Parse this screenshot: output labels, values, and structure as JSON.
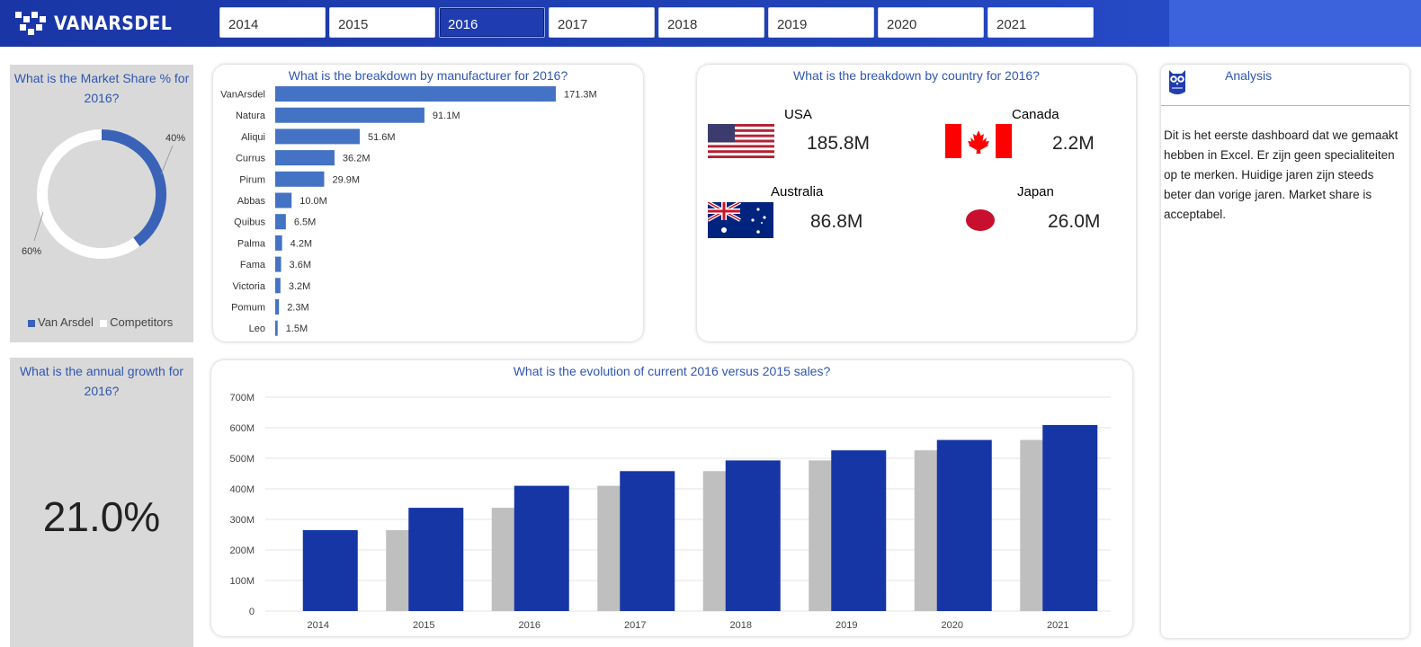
{
  "brand": {
    "name": "VANARSDEL"
  },
  "year_tabs": [
    {
      "label": "2014",
      "active": false
    },
    {
      "label": "2015",
      "active": false
    },
    {
      "label": "2016",
      "active": true
    },
    {
      "label": "2017",
      "active": false
    },
    {
      "label": "2018",
      "active": false
    },
    {
      "label": "2019",
      "active": false
    },
    {
      "label": "2020",
      "active": false
    },
    {
      "label": "2021",
      "active": false
    }
  ],
  "market_share": {
    "title": "What is the Market Share % for 2016?",
    "label_vanarsdel": "40%",
    "label_competitors": "60%",
    "legend_vanarsdel": "Van Arsdel",
    "legend_competitors": "Competitors",
    "colors": {
      "vanarsdel": "#3a63b8",
      "competitors": "#ffffff"
    }
  },
  "annual_growth": {
    "title": "What is the annual growth for 2016?",
    "value": "21.0%"
  },
  "manufacturer": {
    "title": "What is the breakdown by manufacturer for 2016?"
  },
  "country": {
    "title": "What is the breakdown by country for 2016?",
    "items": [
      {
        "name": "USA",
        "value": "185.8M",
        "flag": "us-flag"
      },
      {
        "name": "Canada",
        "value": "2.2M",
        "flag": "canada-flag"
      },
      {
        "name": "Australia",
        "value": "86.8M",
        "flag": "australia-flag"
      },
      {
        "name": "Japan",
        "value": "26.0M",
        "flag": "japan-flag"
      }
    ]
  },
  "evolution": {
    "title": "What is the evolution of current 2016 versus 2015 sales?"
  },
  "analysis": {
    "title": "Analysis",
    "icon": "owl-icon",
    "text": "Dit is het eerste dashboard dat we gemaakt hebben in Excel. Er zijn geen specialiteiten op te merken. Huidige jaren zijn steeds beter dan vorige jaren. Market share is acceptabel."
  },
  "chart_data": [
    {
      "type": "pie",
      "title": "What is the Market Share % for 2016?",
      "categories": [
        "Van Arsdel",
        "Competitors"
      ],
      "values": [
        40,
        60
      ],
      "legend": "bottom"
    },
    {
      "type": "bar",
      "orientation": "horizontal",
      "title": "What is the breakdown by manufacturer for 2016?",
      "categories": [
        "VanArsdel",
        "Natura",
        "Aliqui",
        "Currus",
        "Pirum",
        "Abbas",
        "Quibus",
        "Palma",
        "Fama",
        "Victoria",
        "Pomum",
        "Leo"
      ],
      "values": [
        171.3,
        91.1,
        51.6,
        36.2,
        29.9,
        10.0,
        6.5,
        4.2,
        3.6,
        3.2,
        2.3,
        1.5
      ],
      "value_labels": [
        "171.3M",
        "91.1M",
        "51.6M",
        "36.2M",
        "29.9M",
        "10.0M",
        "6.5M",
        "4.2M",
        "3.6M",
        "3.2M",
        "2.3M",
        "1.5M"
      ],
      "unit": "M",
      "color": "#4472c4"
    },
    {
      "type": "bar",
      "title": "What is the evolution of current 2016 versus 2015 sales?",
      "categories": [
        "2014",
        "2015",
        "2016",
        "2017",
        "2018",
        "2019",
        "2020",
        "2021"
      ],
      "series": [
        {
          "values": [
            null,
            265,
            338,
            410,
            458,
            493,
            526,
            560
          ],
          "color": "#bfbfbf"
        },
        {
          "values": [
            265,
            338,
            410,
            458,
            493,
            526,
            560,
            609
          ],
          "color": "#1736a5"
        }
      ],
      "yticks": [
        "0",
        "100M",
        "200M",
        "300M",
        "400M",
        "500M",
        "600M",
        "700M"
      ],
      "ylim": [
        0,
        700
      ],
      "grid": true
    }
  ]
}
